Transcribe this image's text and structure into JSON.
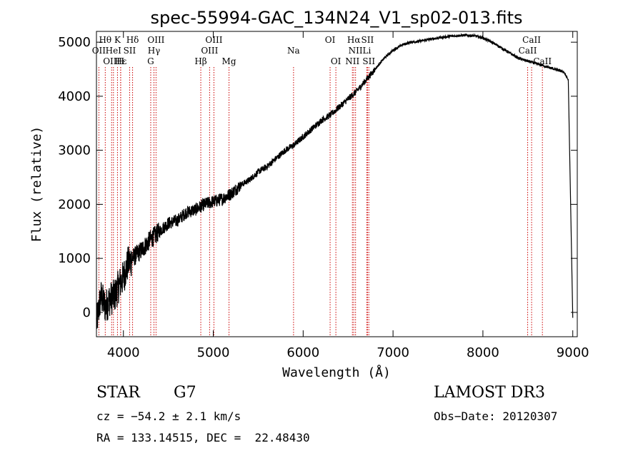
{
  "chart_data": {
    "type": "line",
    "title": "spec-55994-GAC_134N24_V1_sp02-013.fits",
    "xlabel": "Wavelength (Å)",
    "ylabel": "Flux (relative)",
    "xlim": [
      3700,
      9050
    ],
    "ylim": [
      -450,
      5200
    ],
    "x_ticks": [
      4000,
      5000,
      6000,
      7000,
      8000,
      9000
    ],
    "y_ticks": [
      0,
      1000,
      2000,
      3000,
      4000,
      5000
    ],
    "spectrum": {
      "x": [
        3700,
        3750,
        3800,
        3850,
        3900,
        3950,
        4000,
        4050,
        4100,
        4200,
        4300,
        4400,
        4500,
        4600,
        4700,
        4800,
        4900,
        5000,
        5100,
        5200,
        5300,
        5400,
        5500,
        5600,
        5700,
        5800,
        5900,
        6000,
        6100,
        6200,
        6300,
        6400,
        6500,
        6600,
        6700,
        6800,
        6900,
        7000,
        7100,
        7200,
        7300,
        7400,
        7500,
        7600,
        7700,
        7800,
        7900,
        8000,
        8100,
        8200,
        8300,
        8400,
        8500,
        8600,
        8700,
        8800,
        8900,
        8950,
        9000
      ],
      "y": [
        -200,
        300,
        100,
        250,
        300,
        500,
        650,
        900,
        1000,
        1150,
        1350,
        1500,
        1650,
        1700,
        1850,
        1900,
        2000,
        2050,
        2100,
        2200,
        2350,
        2450,
        2600,
        2700,
        2850,
        3000,
        3100,
        3250,
        3400,
        3550,
        3650,
        3800,
        3950,
        4100,
        4300,
        4500,
        4700,
        4850,
        4950,
        5000,
        5020,
        5050,
        5080,
        5100,
        5120,
        5130,
        5120,
        5080,
        5000,
        4900,
        4800,
        4700,
        4650,
        4600,
        4550,
        4500,
        4450,
        4300,
        -100
      ]
    },
    "lines": [
      {
        "label": "Hθ",
        "wl": 3798,
        "row": 0
      },
      {
        "label": "OII",
        "wl": 3727,
        "row": 1
      },
      {
        "label": "OIII",
        "wl": 3869,
        "row": 2
      },
      {
        "label": "K",
        "wl": 3934,
        "row": 0
      },
      {
        "label": "H",
        "wl": 3969,
        "row": 2
      },
      {
        "label": "Hε",
        "wl": 3970,
        "row": 2
      },
      {
        "label": "HeI",
        "wl": 3889,
        "row": 1
      },
      {
        "label": "SII",
        "wl": 4069,
        "row": 1
      },
      {
        "label": "Hδ",
        "wl": 4102,
        "row": 0
      },
      {
        "label": "G",
        "wl": 4304,
        "row": 2
      },
      {
        "label": "Hγ",
        "wl": 4340,
        "row": 1
      },
      {
        "label": "OIII",
        "wl": 4363,
        "row": 0
      },
      {
        "label": "Hβ",
        "wl": 4861,
        "row": 2
      },
      {
        "label": "OIII",
        "wl": 4959,
        "row": 1
      },
      {
        "label": "OIII",
        "wl": 5007,
        "row": 0
      },
      {
        "label": "Mg",
        "wl": 5175,
        "row": 2
      },
      {
        "label": "Na",
        "wl": 5893,
        "row": 1
      },
      {
        "label": "OI",
        "wl": 6300,
        "row": 0
      },
      {
        "label": "OI",
        "wl": 6364,
        "row": 2
      },
      {
        "label": "NII",
        "wl": 6548,
        "row": 2
      },
      {
        "label": "Hα",
        "wl": 6563,
        "row": 0
      },
      {
        "label": "NII",
        "wl": 6583,
        "row": 1
      },
      {
        "label": "Li",
        "wl": 6708,
        "row": 1
      },
      {
        "label": "SII",
        "wl": 6716,
        "row": 0
      },
      {
        "label": "SII",
        "wl": 6731,
        "row": 2
      },
      {
        "label": "CaII",
        "wl": 8498,
        "row": 1
      },
      {
        "label": "CaII",
        "wl": 8542,
        "row": 0
      },
      {
        "label": "CaII",
        "wl": 8662,
        "row": 2
      }
    ],
    "line_color": "#cc0000",
    "trace_color": "#000000"
  },
  "info": {
    "class_label": "STAR",
    "subclass": "G7",
    "survey": "LAMOST DR3",
    "cz": "cz = −54.2 ± 2.1 km/s",
    "obs_date": "Obs−Date: 20120307",
    "coords": "RA = 133.14515, DEC =  22.48430"
  }
}
